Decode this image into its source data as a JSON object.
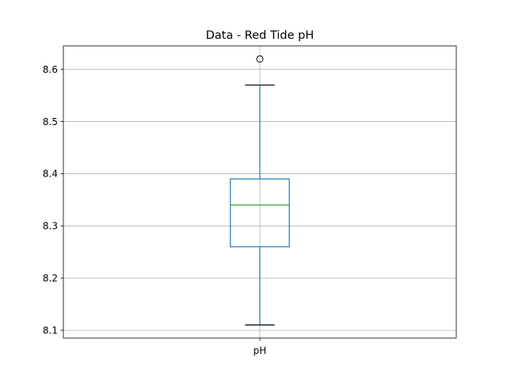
{
  "chart_data": {
    "type": "box",
    "title": "Data - Red Tide pH",
    "xlabel": "",
    "ylabel": "",
    "categories": [
      "pH"
    ],
    "ylim": [
      8.085,
      8.645
    ],
    "yticks": [
      8.1,
      8.2,
      8.3,
      8.4,
      8.5,
      8.6
    ],
    "ytick_labels": [
      "8.1",
      "8.2",
      "8.3",
      "8.4",
      "8.5",
      "8.6"
    ],
    "grid": true,
    "boxes": [
      {
        "category": "pH",
        "whisker_low": 8.11,
        "q1": 8.26,
        "median": 8.34,
        "q3": 8.39,
        "whisker_high": 8.57,
        "outliers": [
          8.62
        ]
      }
    ],
    "colors": {
      "box": "#1f77b4",
      "median": "#2ca02c",
      "caps": "#000000",
      "grid": "#b0b0b0"
    }
  }
}
